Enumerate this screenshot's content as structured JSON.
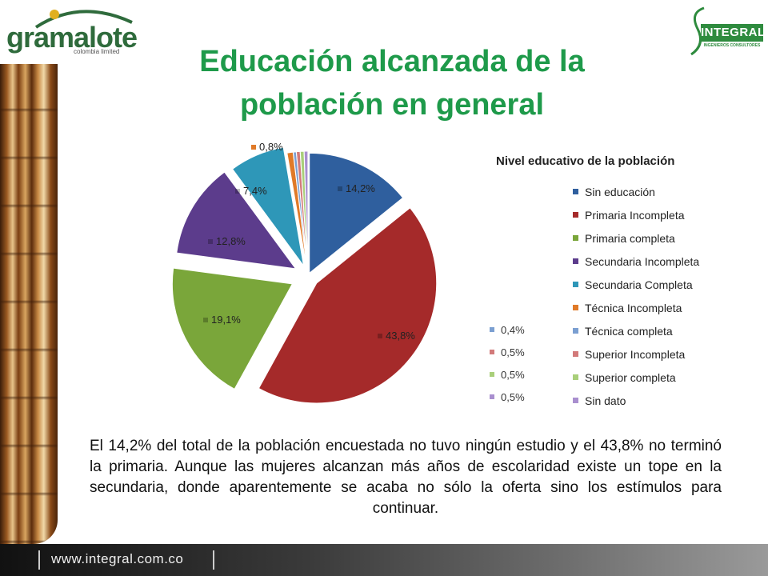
{
  "header": {
    "left_logo": {
      "name": "gramalote",
      "sub": "colombia limited"
    },
    "right_logo": {
      "name": "INTEGRAL",
      "sub": "INGENIEROS CONSULTORES"
    },
    "title_line1": "Educación alcanzada de la",
    "title_line2": "población en general"
  },
  "chart_data": {
    "type": "pie",
    "title": "Nivel educativo de la población",
    "legend_position": "right",
    "slices": [
      {
        "name": "Sin educación",
        "value": 14.2,
        "label": "14,2%",
        "color": "#2f5f9e"
      },
      {
        "name": "Primaria Incompleta",
        "value": 43.8,
        "label": "43,8%",
        "color": "#a52a2a"
      },
      {
        "name": "Primaria completa",
        "value": 19.1,
        "label": "19,1%",
        "color": "#7aa63a"
      },
      {
        "name": "Secundaria Incompleta",
        "value": 12.8,
        "label": "12,8%",
        "color": "#5c3c8c"
      },
      {
        "name": "Secundaria Completa",
        "value": 7.4,
        "label": "7,4%",
        "color": "#2e97b8"
      },
      {
        "name": "Técnica Incompleta",
        "value": 0.8,
        "label": "0,8%",
        "color": "#e07a28"
      },
      {
        "name": "Técnica completa",
        "value": 0.4,
        "label": "0,4%",
        "color": "#7b9fd1"
      },
      {
        "name": "Superior Incompleta",
        "value": 0.5,
        "label": "0,5%",
        "color": "#d27a7a"
      },
      {
        "name": "Superior completa",
        "value": 0.5,
        "label": "0,5%",
        "color": "#a9cf7a"
      },
      {
        "name": "Sin dato",
        "value": 0.5,
        "label": "0,5%",
        "color": "#a98fcf"
      }
    ]
  },
  "body_text": "El 14,2% del total de la población encuestada no tuvo ningún estudio y el 43,8% no terminó la primaria. Aunque las mujeres alcanzan más años de escolaridad existe un tope en la secundaria, donde aparentemente se acaba no sólo la oferta sino los estímulos para continuar.",
  "footer": {
    "url": "www.integral.com.co"
  }
}
